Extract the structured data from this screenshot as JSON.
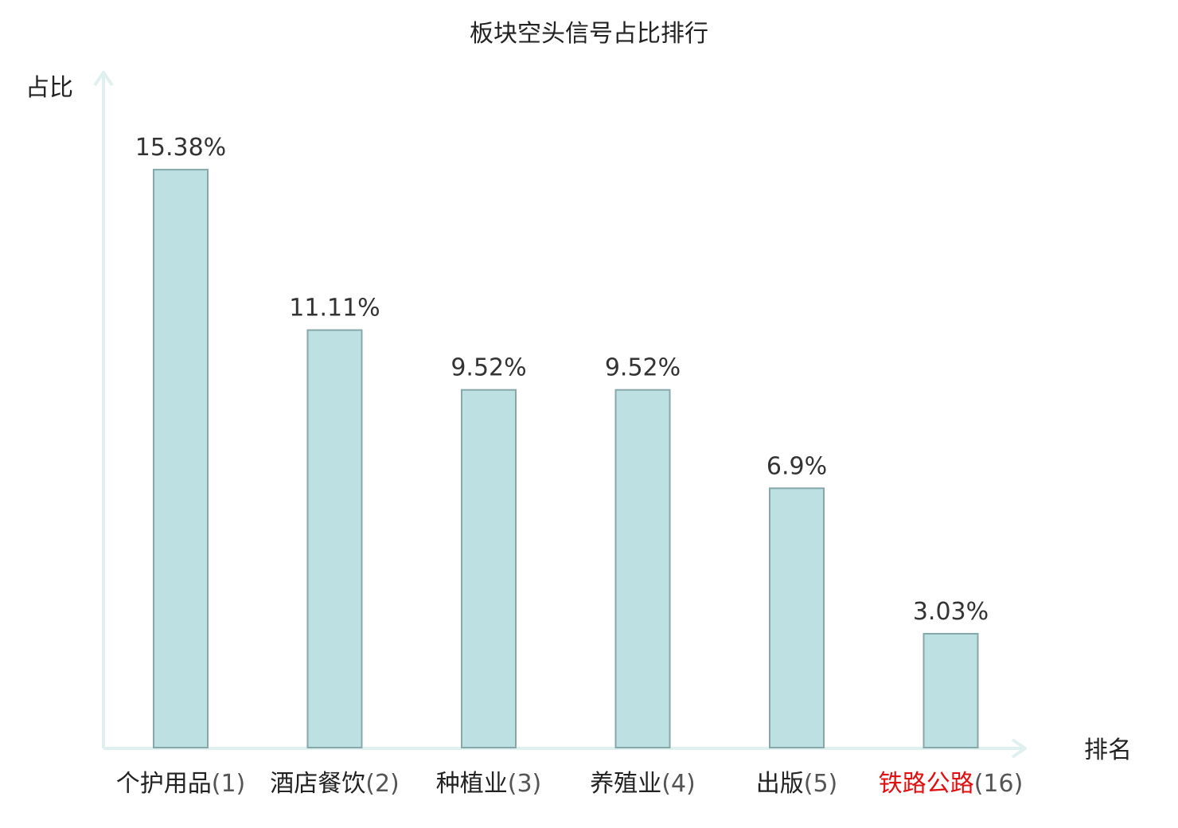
{
  "chart_data": {
    "type": "bar",
    "title": "板块空头信号占比排行",
    "ylabel": "占比",
    "xlabel": "排名",
    "ylim": [
      0,
      18
    ],
    "grid": false,
    "categories": [
      "个护用品(1)",
      "酒店餐饮(2)",
      "种植业(3)",
      "养殖业(4)",
      "出版(5)",
      "铁路公路(16)"
    ],
    "category_names": [
      "个护用品",
      "酒店餐饮",
      "种植业",
      "养殖业",
      "出版",
      "铁路公路"
    ],
    "category_ranks": [
      "(1)",
      "(2)",
      "(3)",
      "(4)",
      "(5)",
      "(16)"
    ],
    "values": [
      15.38,
      11.11,
      9.52,
      9.52,
      6.9,
      3.03
    ],
    "value_labels": [
      "15.38%",
      "11.11%",
      "9.52%",
      "9.52%",
      "6.9%",
      "3.03%"
    ],
    "highlight_index": 5,
    "colors": {
      "bar_fill": "#bde0e2",
      "bar_stroke": "#86a8aa",
      "axis": "#dff0ee",
      "highlight_text": "#e01010",
      "text": "#222222"
    }
  }
}
